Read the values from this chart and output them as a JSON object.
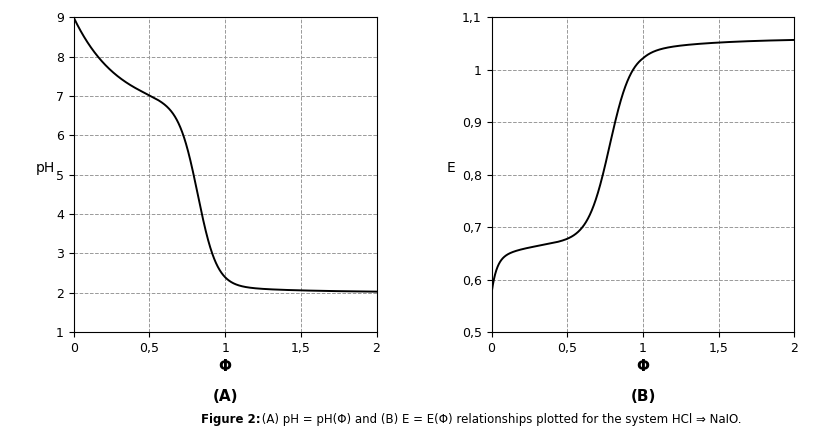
{
  "plot_A": {
    "xlabel": "Φ",
    "ylabel": "pH",
    "label": "(A)",
    "xlim": [
      0,
      2
    ],
    "ylim": [
      1,
      9
    ],
    "xticks": [
      0,
      0.5,
      1,
      1.5,
      2
    ],
    "xtick_labels": [
      "0",
      "0,5",
      "1",
      "1,5",
      "2"
    ],
    "yticks": [
      1,
      2,
      3,
      4,
      5,
      6,
      7,
      8,
      9
    ],
    "ytick_labels": [
      "1",
      "2",
      "3",
      "4",
      "5",
      "6",
      "7",
      "8",
      "9"
    ]
  },
  "plot_B": {
    "xlabel": "Φ",
    "ylabel": "E",
    "label": "(B)",
    "xlim": [
      0,
      2
    ],
    "ylim": [
      0.5,
      1.1
    ],
    "xticks": [
      0,
      0.5,
      1,
      1.5,
      2
    ],
    "xtick_labels": [
      "0",
      "0,5",
      "1",
      "1,5",
      "2"
    ],
    "yticks": [
      0.5,
      0.6,
      0.7,
      0.8,
      0.9,
      1.0,
      1.1
    ],
    "ytick_labels": [
      "0,5",
      "0,6",
      "0,7",
      "0,8",
      "0,9",
      "1",
      "1,1"
    ]
  },
  "figure_caption_bold": "Figure 2:",
  "figure_caption_normal": " (A) pH = pH(Φ) and (B) E = E(Φ) relationships plotted for the system HCl ⇒ NaIO.",
  "line_color": "#000000",
  "bg_color": "#ffffff",
  "grid_color": "#999999",
  "grid_style": "--"
}
